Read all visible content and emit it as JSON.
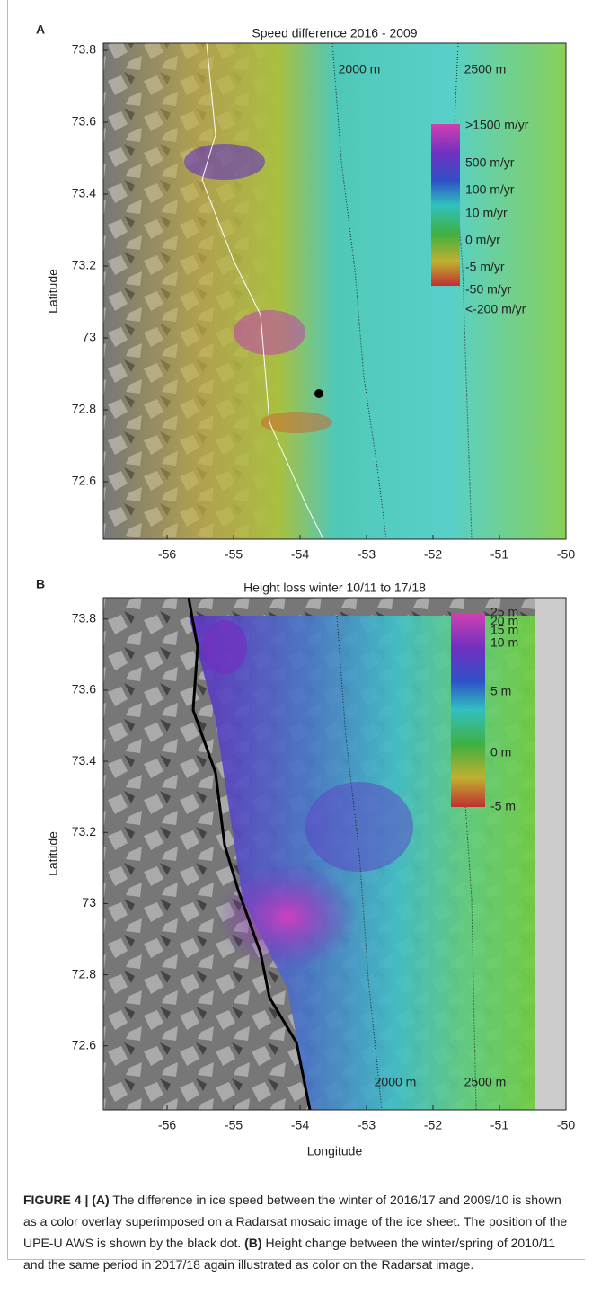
{
  "panels": [
    {
      "label": "A",
      "title": "Speed difference 2016 - 2009",
      "ylabel": "Latitude",
      "xlim": [
        -56.96,
        -50
      ],
      "ylim": [
        72.44,
        73.82
      ],
      "xticks": [
        -56,
        -55,
        -54,
        -53,
        -52,
        -51,
        -50
      ],
      "yticks": [
        72.6,
        72.8,
        73,
        73.2,
        73.4,
        73.6,
        73.8
      ],
      "contour_labels": [
        "2000 m",
        "2500 m"
      ],
      "colorbar": [
        ">1500 m/yr",
        "500 m/yr",
        "100 m/yr",
        "10 m/yr",
        "0 m/yr",
        "-5 m/yr",
        "-50 m/yr",
        "<-200 m/yr"
      ]
    },
    {
      "label": "B",
      "title": "Height loss winter 10/11 to 17/18",
      "ylabel": "Latitude",
      "xlabel": "Longitude",
      "xlim": [
        -56.96,
        -50
      ],
      "ylim": [
        72.42,
        73.86
      ],
      "xticks": [
        -56,
        -55,
        -54,
        -53,
        -52,
        -51,
        -50
      ],
      "yticks": [
        72.6,
        72.8,
        73,
        73.2,
        73.4,
        73.6,
        73.8
      ],
      "contour_labels": [
        "2000 m",
        "2500 m"
      ],
      "colorbar": [
        "25 m",
        "20 m",
        "15 m",
        "10 m",
        "5 m",
        "0 m",
        "-5 m"
      ]
    }
  ],
  "caption": {
    "a_label": "FIGURE 4 | (A)",
    "a_text": " The difference in ice speed between the winter of 2016/17 and 2009/10 is shown as a color overlay superimposed on a Radarsat mosaic image of the ice sheet. The position of the UPE-U AWS is shown by the black dot. ",
    "b_label": "(B)",
    "b_text": " Height change between the winter/spring of 2010/11 and the same period in 2017/18 again illustrated as color on the Radarsat image."
  }
}
